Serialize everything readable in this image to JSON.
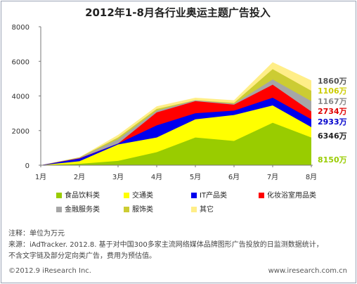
{
  "chart_data": {
    "type": "area",
    "stacked": true,
    "title": "2012年1-8月各行业奥运主题广告投入",
    "categories": [
      "1月",
      "2月",
      "3月",
      "4月",
      "5月",
      "6月",
      "7月",
      "8月"
    ],
    "ylim": [
      0,
      8000
    ],
    "yticks": [
      "0",
      "2000",
      "4000",
      "6000",
      "8000"
    ],
    "series": [
      {
        "name": "食品饮料类",
        "color": "#99cc00",
        "values": [
          0,
          80,
          250,
          750,
          1600,
          1400,
          2450,
          1600
        ],
        "end_label": "8150万"
      },
      {
        "name": "交通类",
        "color": "#ffff00",
        "values": [
          0,
          150,
          950,
          850,
          1050,
          1500,
          1000,
          600
        ],
        "end_label": "6346万"
      },
      {
        "name": "IT产品类",
        "color": "#0000ee",
        "values": [
          0,
          150,
          50,
          700,
          350,
          250,
          450,
          450
        ],
        "end_label": "2933万"
      },
      {
        "name": "化妆浴室用品类",
        "color": "#ff0000",
        "values": [
          0,
          20,
          0,
          750,
          700,
          350,
          750,
          450
        ],
        "end_label": "2734万"
      },
      {
        "name": "金融服务类",
        "color": "#a6a6a6",
        "values": [
          0,
          30,
          250,
          100,
          50,
          50,
          300,
          600
        ],
        "end_label": "1167万"
      },
      {
        "name": "服饰类",
        "color": "#cccc33",
        "values": [
          0,
          20,
          100,
          100,
          0,
          50,
          600,
          600
        ],
        "end_label": "1106万"
      },
      {
        "name": "其它",
        "color": "#ffee88",
        "values": [
          0,
          10,
          150,
          150,
          150,
          150,
          400,
          600
        ],
        "end_label": "1860万"
      }
    ],
    "end_label_colors": [
      "#99cc00",
      "#222222",
      "#0000cc",
      "#e00000",
      "#888888",
      "#cccc00",
      "#555555"
    ]
  },
  "notes": {
    "line1": "注释：单位为万元",
    "line2": "来源：iAdTracker. 2012.8. 基于对中国300多家主流网络媒体品牌图形广告投放的日监测数据统计，",
    "line3": "不含文字链及部分定向类广告，费用为预估值。"
  },
  "footer": {
    "left": "©2012.9 iResearch Inc.",
    "right": "www.iresearch.com.cn"
  }
}
